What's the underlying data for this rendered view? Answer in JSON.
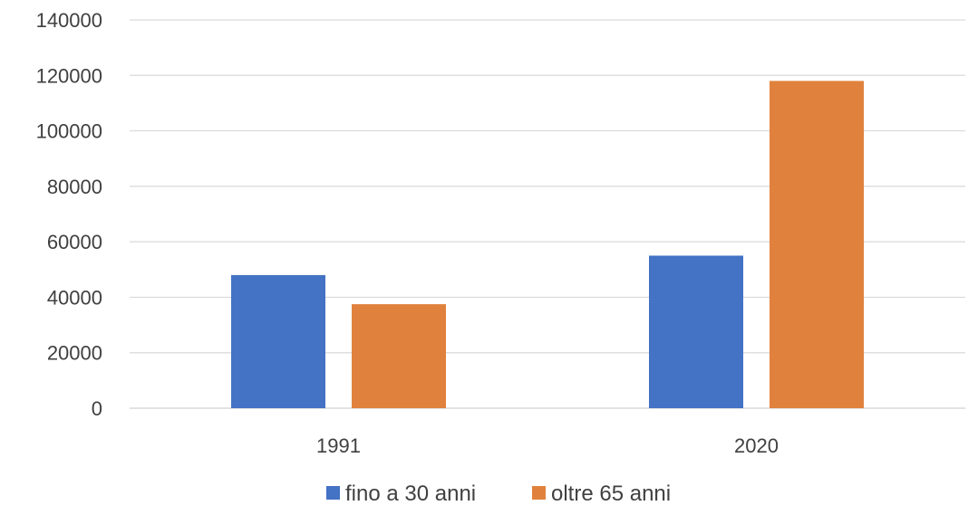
{
  "chart_data": {
    "type": "bar",
    "title": "",
    "xlabel": "",
    "ylabel": "",
    "categories": [
      "1991",
      "2020"
    ],
    "series": [
      {
        "name": "fino a 30 anni",
        "color": "#4472C4",
        "values": [
          48000,
          55000
        ]
      },
      {
        "name": "oltre 65 anni",
        "color": "#E0823D",
        "values": [
          37500,
          118000
        ]
      }
    ],
    "ylim": [
      0,
      140000
    ],
    "yticks": [
      "0",
      "20000",
      "40000",
      "60000",
      "80000",
      "100000",
      "120000",
      "140000"
    ],
    "grid": true,
    "gridline_color": "#D9D9D9",
    "legend": "bottom"
  }
}
